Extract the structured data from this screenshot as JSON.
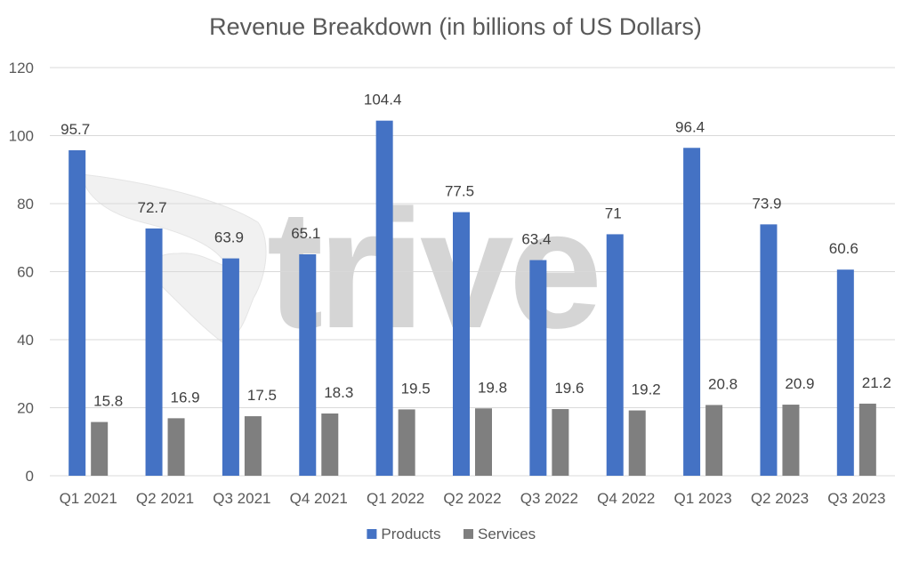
{
  "chart_data": {
    "type": "bar",
    "title": "Revenue Breakdown (in billions of US Dollars)",
    "xlabel": "",
    "ylabel": "",
    "ylim": [
      0,
      120
    ],
    "yticks": [
      0,
      20,
      40,
      60,
      80,
      100,
      120
    ],
    "grid": true,
    "legend_position": "bottom",
    "categories": [
      "Q1 2021",
      "Q2 2021",
      "Q3 2021",
      "Q4 2021",
      "Q1 2022",
      "Q2 2022",
      "Q3 2022",
      "Q4 2022",
      "Q1 2023",
      "Q2 2023",
      "Q3 2023"
    ],
    "series": [
      {
        "name": "Products",
        "color": "#4472c4",
        "values": [
          95.7,
          72.7,
          63.9,
          65.1,
          104.4,
          77.5,
          63.4,
          71,
          96.4,
          73.9,
          60.6
        ]
      },
      {
        "name": "Services",
        "color": "#7f7f7f",
        "values": [
          15.8,
          16.9,
          17.5,
          18.3,
          19.5,
          19.8,
          19.6,
          19.2,
          20.8,
          20.9,
          21.2
        ]
      }
    ]
  },
  "watermark": {
    "text": "trive",
    "color": "#c8c8c8"
  }
}
